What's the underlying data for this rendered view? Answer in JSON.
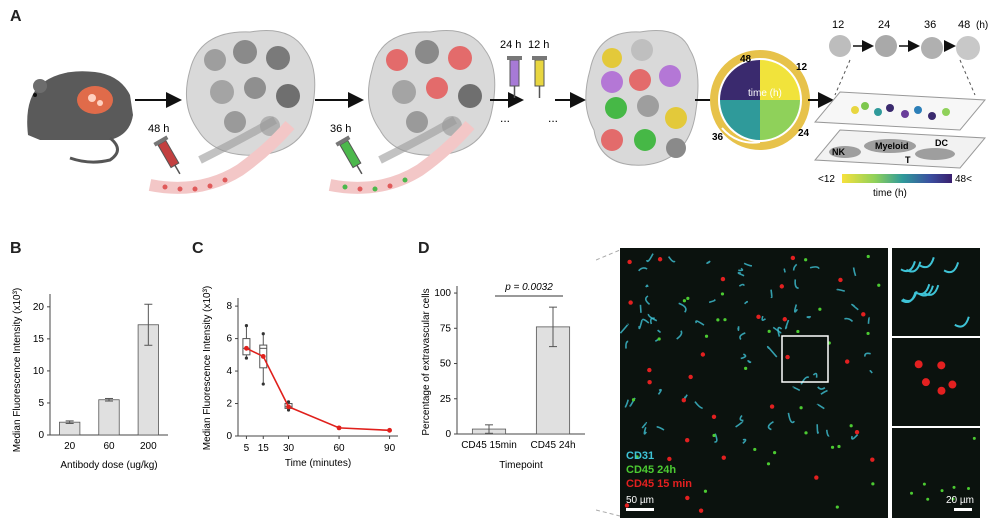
{
  "panels": {
    "a": {
      "letter": "A",
      "inject_1_label": "48 h",
      "inject_2_label": "36 h",
      "syringe_labels": [
        "24 h",
        "12 h"
      ],
      "ellipsis": "...",
      "clock": {
        "center_label": "time (h)",
        "ticks": [
          "48",
          "12",
          "24",
          "36"
        ]
      },
      "timeline": {
        "labels": [
          "12",
          "24",
          "36",
          "48"
        ],
        "unit": "(h)"
      },
      "map_labels": [
        "Myeloid",
        "DC",
        "NK",
        "T"
      ],
      "colorbar": {
        "min_label": "<12",
        "max_label": "48<",
        "title": "time (h)"
      }
    },
    "b": {
      "letter": "B"
    },
    "c": {
      "letter": "C"
    },
    "d": {
      "letter": "D"
    },
    "micrograph": {
      "legend": [
        "CD31",
        "CD45 24h",
        "CD45 15 min"
      ],
      "legend_colors": [
        "#3ec3d6",
        "#4ccb32",
        "#e32020"
      ],
      "scalebar_main": "50 µm",
      "scalebar_inset": "20 µm"
    }
  },
  "chart_data": [
    {
      "type": "bar",
      "panel": "B",
      "ylabel": "Median Fluorescence Intensity (x10³)",
      "xlabel": "Antibody dose (ug/kg)",
      "categories": [
        "20",
        "60",
        "200"
      ],
      "values": [
        2.0,
        5.5,
        17.2
      ],
      "errors": [
        0.2,
        0.2,
        3.2
      ],
      "yticks": [
        0,
        5,
        10,
        15,
        20
      ],
      "ylim": [
        0,
        22
      ]
    },
    {
      "type": "line",
      "panel": "C",
      "ylabel": "Median Fluorescence Intensity (x10³)",
      "xlabel": "Time (minutes)",
      "xticks": [
        5,
        15,
        30,
        60,
        90
      ],
      "x": [
        5,
        15,
        30,
        60,
        90
      ],
      "y": [
        5.4,
        4.9,
        1.8,
        0.5,
        0.35
      ],
      "boxes": [
        {
          "x": 5,
          "min": 4.8,
          "q1": 5.0,
          "median": 5.4,
          "q3": 6.0,
          "max": 6.8
        },
        {
          "x": 15,
          "min": 3.2,
          "q1": 4.2,
          "median": 5.4,
          "q3": 5.6,
          "max": 6.3
        },
        {
          "x": 30,
          "min": 1.6,
          "q1": 1.7,
          "median": 1.8,
          "q3": 2.0,
          "max": 2.1
        }
      ],
      "yticks": [
        0,
        2,
        4,
        6,
        8
      ],
      "ylim": [
        0,
        8.5
      ],
      "xlim": [
        0,
        95
      ],
      "line_color": "#e0201c"
    },
    {
      "type": "bar",
      "panel": "D",
      "ylabel": "Percentage of extravascular cells",
      "xlabel": "Timepoint",
      "categories": [
        "CD45 15min",
        "CD45 24h"
      ],
      "values": [
        3.5,
        76.0
      ],
      "errors": [
        3.0,
        14.0
      ],
      "yticks": [
        0,
        25,
        50,
        75,
        100
      ],
      "ylim": [
        0,
        105
      ],
      "annotation": "p = 0.0032"
    }
  ]
}
